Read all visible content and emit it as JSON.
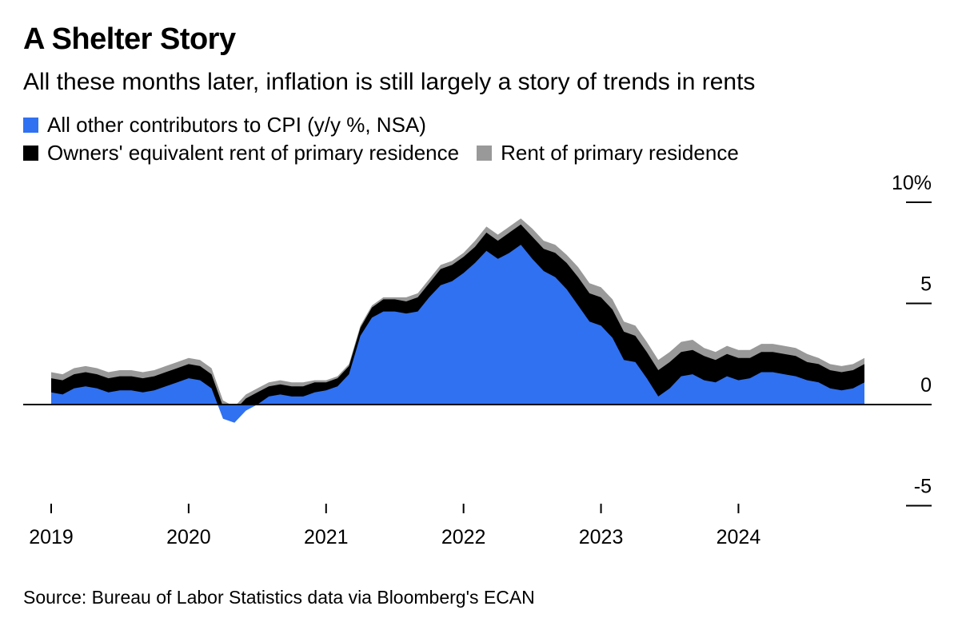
{
  "title": "A Shelter Story",
  "subtitle": "All these months later, inflation is still largely a story of trends in rents",
  "source": "Source: Bureau of Labor Statistics data via Bloomberg's ECAN",
  "colors": {
    "other": "#3071f2",
    "oer": "#000000",
    "rent": "#999999"
  },
  "legend": {
    "other": "All other contributors to CPI (y/y %, NSA)",
    "oer": "Owners' equivalent rent of primary residence",
    "rent": "Rent of primary residence"
  },
  "chart_data": {
    "type": "area",
    "stacked": true,
    "x_start": "2019-01",
    "x_end": "2024-12",
    "x_frequency": "monthly",
    "x_tick_labels": [
      "2019",
      "2020",
      "2021",
      "2022",
      "2023",
      "2024"
    ],
    "y_tick_labels": [
      "10%",
      "5",
      "0",
      "-5"
    ],
    "y_ticks": [
      10,
      5,
      0,
      -5
    ],
    "ylim": [
      -5.5,
      10.5
    ],
    "series": [
      {
        "name": "All other contributors to CPI (y/y %, NSA)",
        "key": "other",
        "values": [
          0.6,
          0.5,
          0.8,
          0.9,
          0.8,
          0.6,
          0.7,
          0.7,
          0.6,
          0.7,
          0.9,
          1.1,
          1.3,
          1.2,
          0.8,
          -0.7,
          -0.9,
          -0.3,
          0.0,
          0.4,
          0.5,
          0.4,
          0.4,
          0.6,
          0.7,
          0.9,
          1.5,
          3.4,
          4.3,
          4.6,
          4.6,
          4.5,
          4.6,
          5.3,
          5.9,
          6.1,
          6.5,
          7.0,
          7.6,
          7.2,
          7.5,
          7.9,
          7.2,
          6.6,
          6.3,
          5.7,
          4.9,
          4.1,
          3.9,
          3.3,
          2.2,
          2.1,
          1.3,
          0.4,
          0.8,
          1.4,
          1.5,
          1.2,
          1.1,
          1.4,
          1.2,
          1.3,
          1.6,
          1.6,
          1.5,
          1.4,
          1.2,
          1.1,
          0.8,
          0.7,
          0.8,
          1.1
        ]
      },
      {
        "name": "Owners' equivalent rent of primary residence",
        "key": "oer",
        "values": [
          0.7,
          0.7,
          0.7,
          0.7,
          0.7,
          0.7,
          0.7,
          0.7,
          0.7,
          0.7,
          0.7,
          0.7,
          0.7,
          0.7,
          0.7,
          0.6,
          0.6,
          0.6,
          0.6,
          0.5,
          0.5,
          0.5,
          0.5,
          0.5,
          0.4,
          0.4,
          0.4,
          0.4,
          0.5,
          0.6,
          0.6,
          0.6,
          0.7,
          0.7,
          0.8,
          0.8,
          0.8,
          0.8,
          0.9,
          0.9,
          1.0,
          1.0,
          1.1,
          1.1,
          1.2,
          1.3,
          1.4,
          1.4,
          1.4,
          1.4,
          1.4,
          1.3,
          1.3,
          1.3,
          1.3,
          1.2,
          1.2,
          1.2,
          1.1,
          1.1,
          1.1,
          1.0,
          1.0,
          1.0,
          1.0,
          1.0,
          0.9,
          0.9,
          0.9,
          0.9,
          0.9,
          0.9
        ]
      },
      {
        "name": "Rent of primary residence",
        "key": "rent",
        "values": [
          0.3,
          0.3,
          0.3,
          0.3,
          0.3,
          0.3,
          0.3,
          0.3,
          0.3,
          0.3,
          0.3,
          0.3,
          0.3,
          0.3,
          0.3,
          0.3,
          0.2,
          0.2,
          0.2,
          0.2,
          0.2,
          0.2,
          0.2,
          0.1,
          0.1,
          0.1,
          0.1,
          0.1,
          0.1,
          0.1,
          0.1,
          0.2,
          0.2,
          0.2,
          0.2,
          0.2,
          0.2,
          0.3,
          0.3,
          0.3,
          0.3,
          0.3,
          0.4,
          0.4,
          0.4,
          0.4,
          0.5,
          0.5,
          0.5,
          0.5,
          0.5,
          0.5,
          0.5,
          0.5,
          0.5,
          0.5,
          0.5,
          0.4,
          0.4,
          0.4,
          0.4,
          0.4,
          0.4,
          0.4,
          0.4,
          0.4,
          0.4,
          0.3,
          0.3,
          0.3,
          0.3,
          0.3
        ]
      }
    ]
  }
}
